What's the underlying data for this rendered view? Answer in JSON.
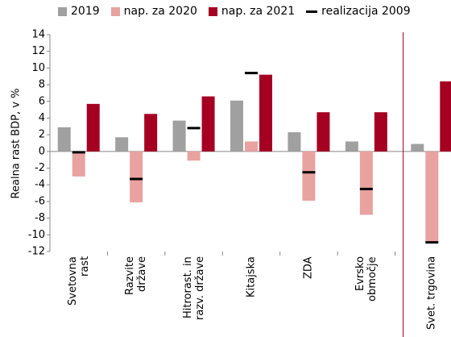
{
  "chart_data": {
    "type": "bar",
    "y_label": "Realna rast BDP, v %",
    "categories": [
      "Svetovna\nrast",
      "Razvite\ndržave",
      "Hitrorast. in\nrazv. države",
      "Kitajska",
      "ZDA",
      "Evrsko\nobmočje",
      "Svet. trgovina"
    ],
    "series": [
      {
        "name": "2019",
        "color": "#a0a0a0",
        "values": [
          2.9,
          1.7,
          3.7,
          6.1,
          2.3,
          1.2,
          0.9
        ]
      },
      {
        "name": "nap. za 2020",
        "color": "#e8a2a0",
        "values": [
          -3.0,
          -6.1,
          -1.1,
          1.2,
          -5.9,
          -7.6,
          -10.8
        ]
      },
      {
        "name": "nap. za 2021",
        "color": "#a50021",
        "values": [
          5.7,
          4.5,
          6.6,
          9.2,
          4.7,
          4.7,
          8.4
        ]
      },
      {
        "name": "realizacija 2009",
        "color": "#000000",
        "marker": "dash",
        "values": [
          -0.1,
          -3.3,
          2.8,
          9.4,
          -2.5,
          -4.5,
          -10.9
        ]
      }
    ],
    "ylim": [
      -12,
      14
    ],
    "yticks": [
      -12,
      -10,
      -8,
      -6,
      -4,
      -2,
      0,
      2,
      4,
      6,
      8,
      10,
      12,
      14
    ]
  }
}
